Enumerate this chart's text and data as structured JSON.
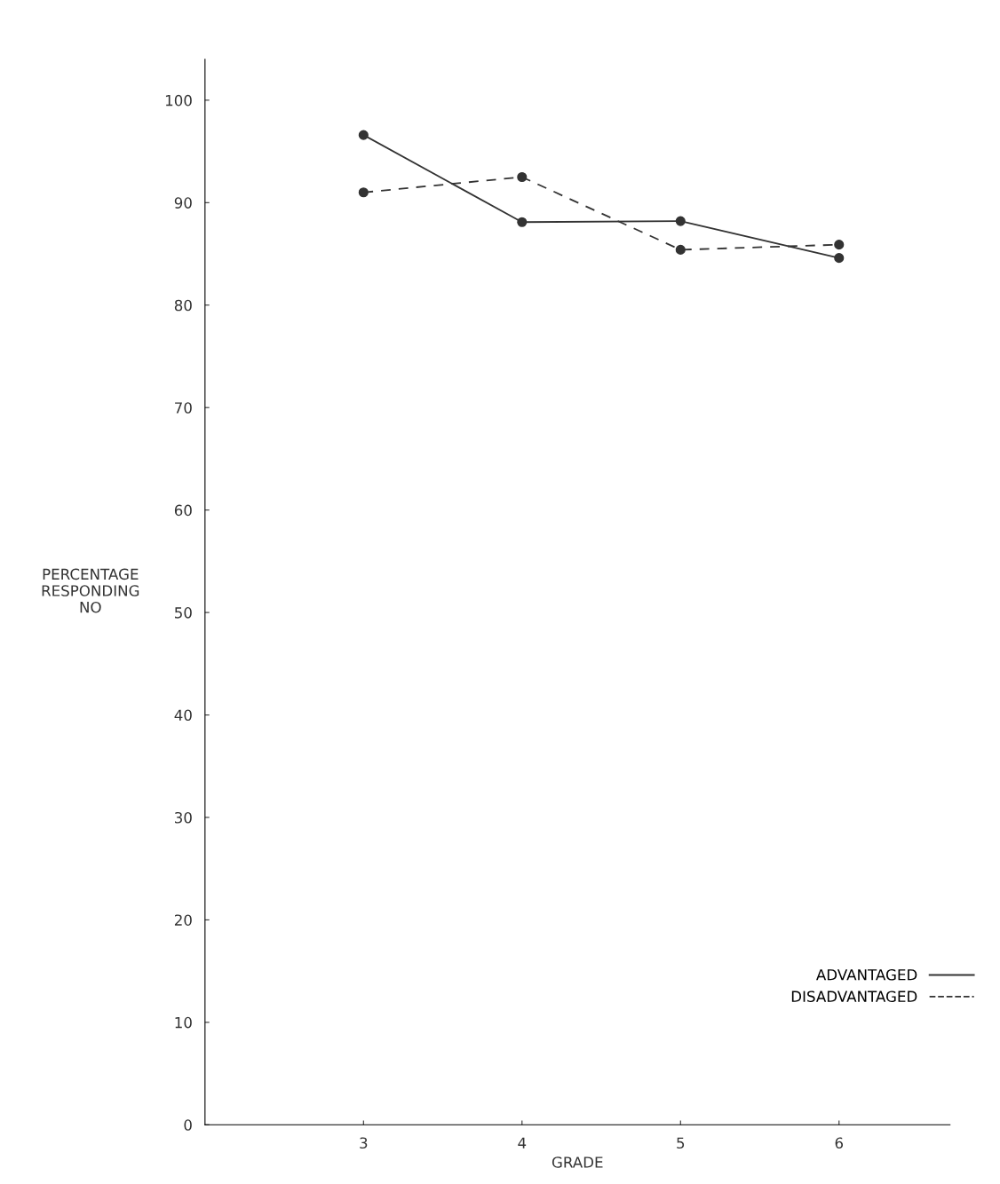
{
  "chart_data": {
    "type": "line",
    "xlabel": "GRADE",
    "ylabel": "PERCENTAGE\nRESPONDING\nNO",
    "x": [
      3,
      4,
      5,
      6
    ],
    "xlim": [
      2,
      6.7
    ],
    "xticks": [
      3,
      4,
      5,
      6
    ],
    "ylim": [
      0,
      104
    ],
    "yticks": [
      0,
      10,
      20,
      30,
      40,
      50,
      60,
      70,
      80,
      90,
      100
    ],
    "grid": false,
    "legend": "bottom right",
    "marker": "circle",
    "series": [
      {
        "name": "ADVANTAGED",
        "color": "#333333",
        "line_style": "solid",
        "values": [
          96.6,
          88.1,
          88.2,
          84.6
        ]
      },
      {
        "name": "DISADVANTAGED",
        "color": "#333333",
        "line_style": "dashed",
        "values": [
          91.0,
          92.5,
          85.4,
          85.9
        ]
      }
    ]
  }
}
